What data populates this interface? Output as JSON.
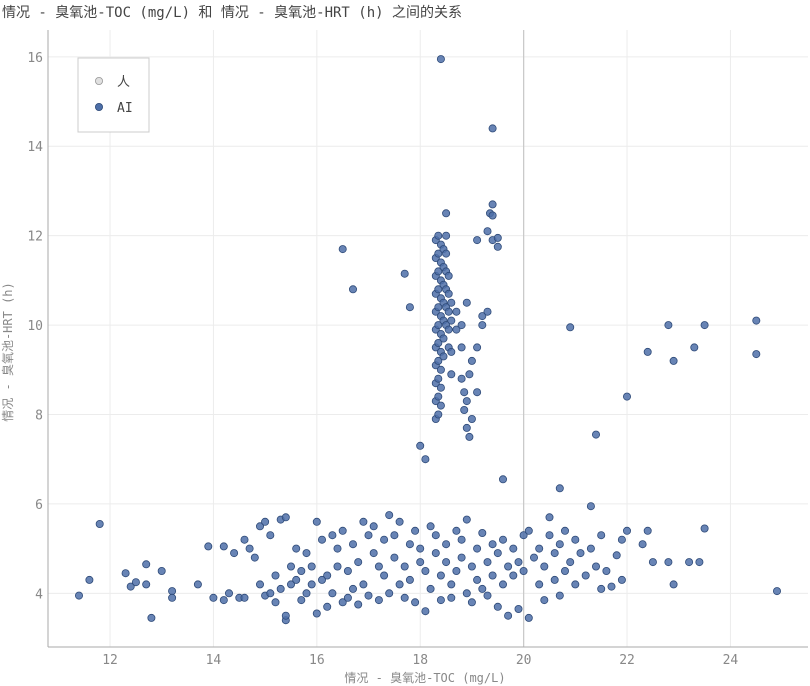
{
  "chart_data": {
    "type": "scatter",
    "title": "情况 - 臭氧池-TOC (mg/L) 和 情况 - 臭氧池-HRT (h) 之间的关系",
    "xlabel": "情况 - 臭氧池-TOC (mg/L)",
    "ylabel": "情况 - 臭氧池-HRT (h)",
    "xlim": [
      10.8,
      25.5
    ],
    "ylim": [
      2.8,
      16.6
    ],
    "xticks": [
      12,
      14,
      16,
      18,
      20,
      22,
      24
    ],
    "yticks": [
      4,
      6,
      8,
      10,
      12,
      14,
      16
    ],
    "reference_line_x": 20,
    "grid": true,
    "legend_position": "top-left",
    "series": [
      {
        "name": "人",
        "color": "#bbbbbb",
        "points": []
      },
      {
        "name": "AI",
        "color": "#4d6fa8",
        "points": [
          [
            11.4,
            3.95
          ],
          [
            11.6,
            4.3
          ],
          [
            11.8,
            5.55
          ],
          [
            12.3,
            4.45
          ],
          [
            12.4,
            4.15
          ],
          [
            12.5,
            4.25
          ],
          [
            12.7,
            4.65
          ],
          [
            12.7,
            4.2
          ],
          [
            12.8,
            3.45
          ],
          [
            13.0,
            4.5
          ],
          [
            13.2,
            4.05
          ],
          [
            13.2,
            3.9
          ],
          [
            13.7,
            4.2
          ],
          [
            13.9,
            5.05
          ],
          [
            14.0,
            3.9
          ],
          [
            14.2,
            3.85
          ],
          [
            14.2,
            5.05
          ],
          [
            14.3,
            4.0
          ],
          [
            14.4,
            4.9
          ],
          [
            14.5,
            3.9
          ],
          [
            14.6,
            5.2
          ],
          [
            14.6,
            3.9
          ],
          [
            14.7,
            5.0
          ],
          [
            14.8,
            4.8
          ],
          [
            14.9,
            5.5
          ],
          [
            14.9,
            4.2
          ],
          [
            15.0,
            5.6
          ],
          [
            15.0,
            3.95
          ],
          [
            15.1,
            4.0
          ],
          [
            15.1,
            5.3
          ],
          [
            15.2,
            4.4
          ],
          [
            15.2,
            3.8
          ],
          [
            15.3,
            5.65
          ],
          [
            15.3,
            4.1
          ],
          [
            15.4,
            5.7
          ],
          [
            15.4,
            3.4
          ],
          [
            15.4,
            3.5
          ],
          [
            15.5,
            4.6
          ],
          [
            15.5,
            4.2
          ],
          [
            15.6,
            5.0
          ],
          [
            15.6,
            4.3
          ],
          [
            15.7,
            4.5
          ],
          [
            15.7,
            3.85
          ],
          [
            15.8,
            4.9
          ],
          [
            15.8,
            4.0
          ],
          [
            15.9,
            4.6
          ],
          [
            15.9,
            4.2
          ],
          [
            16.0,
            5.6
          ],
          [
            16.0,
            3.55
          ],
          [
            16.1,
            4.3
          ],
          [
            16.1,
            5.2
          ],
          [
            16.2,
            4.4
          ],
          [
            16.2,
            3.7
          ],
          [
            16.3,
            5.3
          ],
          [
            16.3,
            4.0
          ],
          [
            16.4,
            5.0
          ],
          [
            16.4,
            4.6
          ],
          [
            16.5,
            5.4
          ],
          [
            16.5,
            3.8
          ],
          [
            16.6,
            4.5
          ],
          [
            16.6,
            3.9
          ],
          [
            16.7,
            5.1
          ],
          [
            16.7,
            4.1
          ],
          [
            16.8,
            4.7
          ],
          [
            16.8,
            3.75
          ],
          [
            16.9,
            5.6
          ],
          [
            16.9,
            4.2
          ],
          [
            17.0,
            5.3
          ],
          [
            17.0,
            3.95
          ],
          [
            17.1,
            4.9
          ],
          [
            17.1,
            5.5
          ],
          [
            17.2,
            4.6
          ],
          [
            17.2,
            3.85
          ],
          [
            17.3,
            5.2
          ],
          [
            17.3,
            4.4
          ],
          [
            17.4,
            5.75
          ],
          [
            17.4,
            4.0
          ],
          [
            17.5,
            4.8
          ],
          [
            17.5,
            5.3
          ],
          [
            17.6,
            4.2
          ],
          [
            17.6,
            5.6
          ],
          [
            17.7,
            4.6
          ],
          [
            17.7,
            3.9
          ],
          [
            17.8,
            5.1
          ],
          [
            17.8,
            4.3
          ],
          [
            17.9,
            5.4
          ],
          [
            17.9,
            3.8
          ],
          [
            18.0,
            4.7
          ],
          [
            18.0,
            5.0
          ],
          [
            18.1,
            4.5
          ],
          [
            18.1,
            3.6
          ],
          [
            18.2,
            5.5
          ],
          [
            18.2,
            4.1
          ],
          [
            18.3,
            4.9
          ],
          [
            18.3,
            5.3
          ],
          [
            18.4,
            4.4
          ],
          [
            18.4,
            3.85
          ],
          [
            18.5,
            5.1
          ],
          [
            18.5,
            4.7
          ],
          [
            18.6,
            4.2
          ],
          [
            18.6,
            3.9
          ],
          [
            18.7,
            5.4
          ],
          [
            18.7,
            4.5
          ],
          [
            18.8,
            4.8
          ],
          [
            18.8,
            5.2
          ],
          [
            18.9,
            4.0
          ],
          [
            18.9,
            5.65
          ],
          [
            19.0,
            4.6
          ],
          [
            19.0,
            3.8
          ],
          [
            19.1,
            5.0
          ],
          [
            19.1,
            4.3
          ],
          [
            19.2,
            5.35
          ],
          [
            19.2,
            4.1
          ],
          [
            19.3,
            4.7
          ],
          [
            19.3,
            3.95
          ],
          [
            19.4,
            5.1
          ],
          [
            19.4,
            4.4
          ],
          [
            19.5,
            4.9
          ],
          [
            19.5,
            3.7
          ],
          [
            19.6,
            5.2
          ],
          [
            19.6,
            4.2
          ],
          [
            19.7,
            4.6
          ],
          [
            19.7,
            3.5
          ],
          [
            19.8,
            5.0
          ],
          [
            19.8,
            4.4
          ],
          [
            19.9,
            4.7
          ],
          [
            19.9,
            3.65
          ],
          [
            20.0,
            5.3
          ],
          [
            20.0,
            4.5
          ],
          [
            20.1,
            3.45
          ],
          [
            20.1,
            5.4
          ],
          [
            20.2,
            4.8
          ],
          [
            20.3,
            4.2
          ],
          [
            20.3,
            5.0
          ],
          [
            20.4,
            4.6
          ],
          [
            20.4,
            3.85
          ],
          [
            20.5,
            5.7
          ],
          [
            20.5,
            5.3
          ],
          [
            20.6,
            4.3
          ],
          [
            20.6,
            4.9
          ],
          [
            20.7,
            5.1
          ],
          [
            20.7,
            3.95
          ],
          [
            20.8,
            4.5
          ],
          [
            20.8,
            5.4
          ],
          [
            20.9,
            4.7
          ],
          [
            21.0,
            4.2
          ],
          [
            21.0,
            5.2
          ],
          [
            21.1,
            4.9
          ],
          [
            21.2,
            4.4
          ],
          [
            21.3,
            5.0
          ],
          [
            21.3,
            5.95
          ],
          [
            21.4,
            4.6
          ],
          [
            21.5,
            5.3
          ],
          [
            21.5,
            4.1
          ],
          [
            21.6,
            4.5
          ],
          [
            21.7,
            4.15
          ],
          [
            21.8,
            4.85
          ],
          [
            21.9,
            5.2
          ],
          [
            21.9,
            4.3
          ],
          [
            22.0,
            5.4
          ],
          [
            22.3,
            5.1
          ],
          [
            22.4,
            5.4
          ],
          [
            22.5,
            4.7
          ],
          [
            22.8,
            4.7
          ],
          [
            22.9,
            4.2
          ],
          [
            23.2,
            4.7
          ],
          [
            23.4,
            4.7
          ],
          [
            23.5,
            5.45
          ],
          [
            24.9,
            4.05
          ],
          [
            20.7,
            6.35
          ],
          [
            19.6,
            6.55
          ],
          [
            18.0,
            7.3
          ],
          [
            18.1,
            7.0
          ],
          [
            21.4,
            7.55
          ],
          [
            22.0,
            8.4
          ],
          [
            20.9,
            9.95
          ],
          [
            22.4,
            9.4
          ],
          [
            22.8,
            10.0
          ],
          [
            22.9,
            9.2
          ],
          [
            23.3,
            9.5
          ],
          [
            23.5,
            10.0
          ],
          [
            24.5,
            10.1
          ],
          [
            24.5,
            9.35
          ],
          [
            16.7,
            10.8
          ],
          [
            17.8,
            10.4
          ],
          [
            17.7,
            11.15
          ],
          [
            16.5,
            11.7
          ],
          [
            18.4,
            15.95
          ],
          [
            19.4,
            14.4
          ],
          [
            18.3,
            7.9
          ],
          [
            18.3,
            8.3
          ],
          [
            18.3,
            8.7
          ],
          [
            18.3,
            9.1
          ],
          [
            18.3,
            9.5
          ],
          [
            18.3,
            9.9
          ],
          [
            18.3,
            10.3
          ],
          [
            18.3,
            10.7
          ],
          [
            18.3,
            11.1
          ],
          [
            18.3,
            11.5
          ],
          [
            18.3,
            11.9
          ],
          [
            18.35,
            8.0
          ],
          [
            18.35,
            8.4
          ],
          [
            18.35,
            8.8
          ],
          [
            18.35,
            9.2
          ],
          [
            18.35,
            9.6
          ],
          [
            18.35,
            10.0
          ],
          [
            18.35,
            10.4
          ],
          [
            18.35,
            10.8
          ],
          [
            18.35,
            11.2
          ],
          [
            18.35,
            11.6
          ],
          [
            18.35,
            12.0
          ],
          [
            18.4,
            8.2
          ],
          [
            18.4,
            8.6
          ],
          [
            18.4,
            9.0
          ],
          [
            18.4,
            9.4
          ],
          [
            18.4,
            9.8
          ],
          [
            18.4,
            10.2
          ],
          [
            18.4,
            10.6
          ],
          [
            18.4,
            11.0
          ],
          [
            18.4,
            11.4
          ],
          [
            18.4,
            11.8
          ],
          [
            18.45,
            9.3
          ],
          [
            18.45,
            9.7
          ],
          [
            18.45,
            10.1
          ],
          [
            18.45,
            10.5
          ],
          [
            18.45,
            10.9
          ],
          [
            18.45,
            11.3
          ],
          [
            18.45,
            11.7
          ],
          [
            18.5,
            10.0
          ],
          [
            18.5,
            10.4
          ],
          [
            18.5,
            10.8
          ],
          [
            18.5,
            11.2
          ],
          [
            18.5,
            11.6
          ],
          [
            18.5,
            12.0
          ],
          [
            18.5,
            12.5
          ],
          [
            18.55,
            9.5
          ],
          [
            18.55,
            9.9
          ],
          [
            18.55,
            10.3
          ],
          [
            18.55,
            10.7
          ],
          [
            18.55,
            11.1
          ],
          [
            18.6,
            8.9
          ],
          [
            18.6,
            9.4
          ],
          [
            18.6,
            10.1
          ],
          [
            18.6,
            10.5
          ],
          [
            18.7,
            9.9
          ],
          [
            18.7,
            10.3
          ],
          [
            18.8,
            8.8
          ],
          [
            18.8,
            9.5
          ],
          [
            18.8,
            10.0
          ],
          [
            18.85,
            8.5
          ],
          [
            18.85,
            8.1
          ],
          [
            18.9,
            7.7
          ],
          [
            18.9,
            8.3
          ],
          [
            18.9,
            10.5
          ],
          [
            18.95,
            7.5
          ],
          [
            18.95,
            8.9
          ],
          [
            19.0,
            7.9
          ],
          [
            19.0,
            9.2
          ],
          [
            19.1,
            8.5
          ],
          [
            19.1,
            9.5
          ],
          [
            19.1,
            11.9
          ],
          [
            19.2,
            10.0
          ],
          [
            19.2,
            10.2
          ],
          [
            19.3,
            10.3
          ],
          [
            19.3,
            12.1
          ],
          [
            19.35,
            12.5
          ],
          [
            19.4,
            12.45
          ],
          [
            19.4,
            12.7
          ],
          [
            19.4,
            11.9
          ],
          [
            19.5,
            11.75
          ],
          [
            19.5,
            11.95
          ]
        ]
      }
    ]
  }
}
